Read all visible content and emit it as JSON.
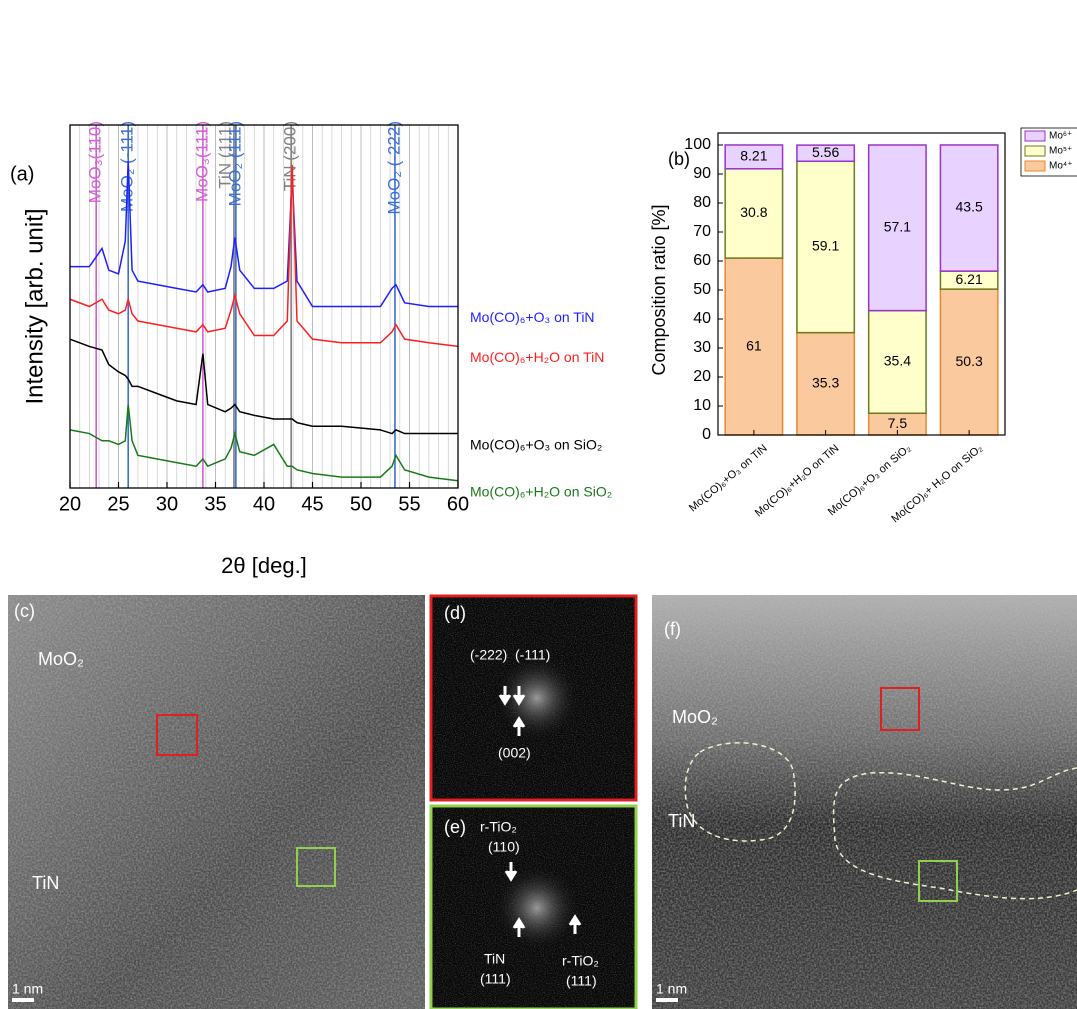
{
  "chart_data": [
    {
      "type": "line",
      "panel_label": "(a)",
      "x_label": "2θ [deg.]",
      "y_label": "Intensity [arb. unit]",
      "xlim": [
        20,
        60
      ],
      "xticks": [
        20,
        25,
        30,
        35,
        40,
        45,
        50,
        55,
        60
      ],
      "minor_xticks": [
        21,
        22,
        23,
        24,
        26,
        27,
        28,
        29,
        31,
        32,
        33,
        34,
        36,
        37,
        38,
        39,
        41,
        42,
        43,
        44,
        46,
        47,
        48,
        49,
        51,
        52,
        53,
        54,
        56,
        57,
        58,
        59
      ],
      "ylim": [
        0,
        100
      ],
      "grid": true,
      "x": [
        20,
        22,
        23.3,
        24,
        25,
        25.7,
        26,
        26.4,
        27,
        29,
        31,
        33,
        33.7,
        34.2,
        36,
        36.6,
        37,
        37.5,
        39,
        41,
        42.4,
        42.9,
        43.4,
        45,
        48,
        52,
        53.2,
        53.6,
        54.5,
        57,
        60
      ],
      "series": [
        {
          "name": "Mo(CO)₆+O₃ on TiN",
          "color": "#1f1fff",
          "values": [
            61,
            61,
            66,
            60,
            59,
            68,
            90,
            60,
            57,
            56,
            55,
            54,
            56,
            54,
            55,
            61,
            69,
            60,
            55,
            55,
            57,
            86,
            57,
            50,
            50,
            50,
            55,
            56,
            51,
            50,
            50
          ]
        },
        {
          "name": "Mo(CO)₆+H₂O on TiN",
          "color": "#ff1f1f",
          "values": [
            52,
            50,
            52,
            49,
            48,
            49,
            52,
            48,
            46,
            45,
            44,
            43,
            45,
            43,
            44,
            49,
            53,
            48,
            42,
            42,
            46,
            89,
            46,
            41,
            40,
            40,
            43,
            45,
            41,
            40,
            39
          ]
        },
        {
          "name": "Mo(CO)₆+O₃ on SiO₂",
          "color": "#000000",
          "values": [
            41,
            39,
            38,
            34,
            32,
            31,
            30,
            28,
            28,
            26,
            24,
            23,
            37,
            23,
            21,
            22,
            23,
            21,
            20,
            19,
            19,
            19,
            18,
            17,
            17,
            16,
            15,
            16,
            15,
            15,
            15
          ]
        },
        {
          "name": "Mo(CO)₆+H₂O on SiO₂",
          "color": "#1a7a1a",
          "values": [
            16,
            15,
            13,
            13,
            12,
            13,
            23,
            13,
            9,
            8,
            7,
            6,
            8,
            6,
            8,
            11,
            15,
            10,
            9,
            12,
            6,
            6,
            5,
            4,
            3,
            3,
            6,
            9,
            5,
            3,
            2
          ]
        }
      ],
      "reference_lines": [
        {
          "label": "MoO₃(110)",
          "x": 22.7,
          "color": "#d45fd4"
        },
        {
          "label": "MoO₂ (-111)",
          "x": 26.0,
          "color": "#3b6fd4"
        },
        {
          "label": "MoO₃(111)",
          "x": 33.7,
          "color": "#d45fd4"
        },
        {
          "label": "TiN (111)",
          "x": 36.9,
          "color": "#808080"
        },
        {
          "label": "MoO₂ (111)",
          "x": 37.1,
          "color": "#3b6fd4"
        },
        {
          "label": "TiN (200)",
          "x": 42.8,
          "color": "#808080"
        },
        {
          "label": "MoO₂ (-222)",
          "x": 53.5,
          "color": "#3b6fd4"
        }
      ]
    },
    {
      "type": "bar",
      "stacked": true,
      "panel_label": "(b)",
      "y_label": "Composition ratio [%]",
      "categories": [
        "Mo(CO)₆+O₃ on TiN",
        "Mo(CO)₆+H₂O on TiN",
        "Mo(CO)₆+O₃ on SiO₂",
        "Mo(CO)₆+ H₂O on SiO₂"
      ],
      "ylim": [
        0,
        100
      ],
      "yticks": [
        0,
        10,
        20,
        30,
        40,
        50,
        60,
        70,
        80,
        90,
        100
      ],
      "legend": "top-right",
      "series": [
        {
          "name": "Mo⁴⁺",
          "color": "#fbc99e",
          "edge": "#e8872e",
          "values": [
            61,
            35.3,
            7.5,
            50.3
          ]
        },
        {
          "name": "Mo⁵⁺",
          "color": "#ffffcc",
          "edge": "#6b7a1e",
          "values": [
            30.8,
            59.1,
            35.4,
            6.21
          ]
        },
        {
          "name": "Mo⁶⁺",
          "color": "#e8d2ff",
          "edge": "#9933cc",
          "values": [
            8.21,
            5.56,
            57.1,
            43.5
          ]
        }
      ]
    }
  ],
  "images": [
    {
      "label": "(c)",
      "annotations": [
        "MoO₂",
        "TiN"
      ],
      "scale_bar": "1 nm"
    },
    {
      "label": "(d)",
      "annotations": [
        "(-222)",
        "(-111)",
        "(002)"
      ]
    },
    {
      "label": "(e)",
      "annotations": [
        "r-TiO₂",
        "(110)",
        "TiN",
        "(111)",
        "r-TiO₂",
        "(111)"
      ]
    },
    {
      "label": "(f)",
      "annotations": [
        "MoO₂",
        "TiN"
      ],
      "scale_bar": "1 nm"
    }
  ]
}
